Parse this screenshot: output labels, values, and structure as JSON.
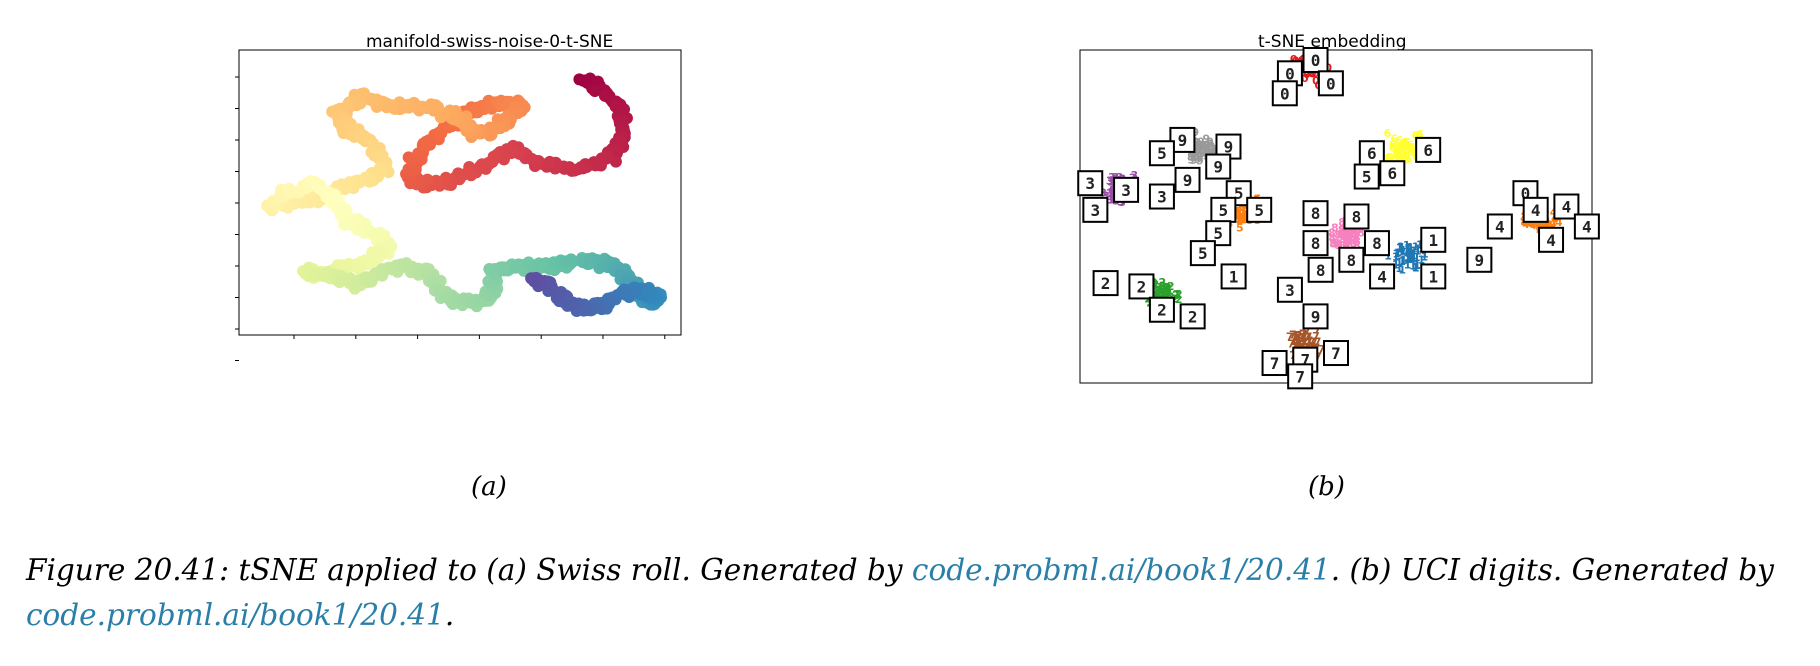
{
  "figure": {
    "panel_a": {
      "title": "manifold-swiss-noise-0-t-SNE",
      "sublabel": "(a)"
    },
    "panel_b": {
      "title": "t-SNE embedding",
      "sublabel": "(b)"
    },
    "caption": {
      "part1": "Figure 20.41: tSNE applied to (a) Swiss roll.  Generated by ",
      "link1": "code.probml.ai/book1/20.41",
      "part2": ".  (b) UCI digits. Generated by ",
      "link2": "code.probml.ai/book1/20.41",
      "part3": "."
    }
  },
  "chart_data": [
    {
      "type": "scatter",
      "title": "manifold-swiss-noise-0-t-SNE",
      "xlabel": "",
      "ylabel": "",
      "colormap": "Spectral",
      "grid": false,
      "legend": "none",
      "xlim": [
        0,
        100
      ],
      "ylim": [
        0,
        100
      ],
      "x_ticks_count": 7,
      "y_ticks_count": 10,
      "series": [
        {
          "color_by": "position along manifold",
          "path": [
            [
              78,
              90
            ],
            [
              82,
              86
            ],
            [
              86,
              80
            ],
            [
              87,
              70
            ],
            [
              84,
              62
            ],
            [
              76,
              58
            ],
            [
              68,
              60
            ],
            [
              62,
              66
            ],
            [
              56,
              60
            ],
            [
              48,
              54
            ],
            [
              42,
              53
            ],
            [
              38,
              56
            ],
            [
              41,
              64
            ],
            [
              46,
              72
            ],
            [
              52,
              78
            ],
            [
              58,
              82
            ],
            [
              64,
              80
            ],
            [
              60,
              74
            ],
            [
              54,
              70
            ],
            [
              50,
              76
            ],
            [
              44,
              80
            ],
            [
              34,
              80
            ],
            [
              28,
              84
            ],
            [
              22,
              78
            ],
            [
              25,
              72
            ],
            [
              31,
              66
            ],
            [
              33,
              58
            ],
            [
              27,
              54
            ],
            [
              21,
              50
            ],
            [
              14,
              47
            ],
            [
              7,
              44
            ],
            [
              10,
              50
            ],
            [
              17,
              53
            ],
            [
              22,
              47
            ],
            [
              24,
              40
            ],
            [
              30,
              36
            ],
            [
              34,
              31
            ],
            [
              30,
              26
            ],
            [
              24,
              24
            ],
            [
              19,
              21
            ],
            [
              15,
              22
            ],
            [
              22,
              20
            ],
            [
              28,
              18
            ],
            [
              32,
              22
            ],
            [
              38,
              24
            ],
            [
              43,
              22
            ],
            [
              45,
              16
            ],
            [
              49,
              12
            ],
            [
              55,
              12
            ],
            [
              58,
              16
            ],
            [
              57,
              22
            ],
            [
              62,
              24
            ],
            [
              68,
              24
            ],
            [
              74,
              25
            ],
            [
              80,
              26
            ],
            [
              85,
              24
            ],
            [
              88,
              20
            ],
            [
              90,
              14
            ],
            [
              93,
              11
            ],
            [
              95,
              13
            ],
            [
              91,
              16
            ],
            [
              86,
              14
            ],
            [
              82,
              10
            ],
            [
              78,
              9
            ],
            [
              74,
              12
            ],
            [
              70,
              18
            ],
            [
              66,
              20
            ]
          ]
        }
      ]
    },
    {
      "type": "scatter",
      "title": "t-SNE embedding",
      "xlabel": "",
      "ylabel": "",
      "grid": false,
      "legend": "none",
      "xlim": [
        0,
        100
      ],
      "ylim": [
        0,
        100
      ],
      "clusters": [
        {
          "digit": "0",
          "color": "#e41a1c",
          "center": [
            45,
            93
          ]
        },
        {
          "digit": "1",
          "color": "#1f77b4",
          "center": [
            64,
            37
          ]
        },
        {
          "digit": "2",
          "color": "#2ca02c",
          "center": [
            16,
            26
          ]
        },
        {
          "digit": "3",
          "color": "#984ea3",
          "center": [
            8,
            57
          ]
        },
        {
          "digit": "4",
          "color": "#ff7f0e",
          "center": [
            90,
            47
          ]
        },
        {
          "digit": "5",
          "color": "#ff7f0e",
          "center": [
            32,
            50
          ]
        },
        {
          "digit": "6",
          "color": "#ffff33",
          "center": [
            63,
            69
          ]
        },
        {
          "digit": "7",
          "color": "#a65628",
          "center": [
            44,
            11
          ]
        },
        {
          "digit": "8",
          "color": "#f781bf",
          "center": [
            52,
            43
          ]
        },
        {
          "digit": "9",
          "color": "#999999",
          "center": [
            24,
            69
          ]
        }
      ],
      "thumbnails": [
        {
          "digit": "0",
          "pos": [
            46,
            97
          ]
        },
        {
          "digit": "0",
          "pos": [
            41,
            93
          ]
        },
        {
          "digit": "0",
          "pos": [
            49,
            90
          ]
        },
        {
          "digit": "0",
          "pos": [
            40,
            87
          ]
        },
        {
          "digit": "6",
          "pos": [
            57,
            69
          ]
        },
        {
          "digit": "6",
          "pos": [
            68,
            70
          ]
        },
        {
          "digit": "6",
          "pos": [
            61,
            63
          ]
        },
        {
          "digit": "5",
          "pos": [
            56,
            62
          ]
        },
        {
          "digit": "9",
          "pos": [
            20,
            73
          ]
        },
        {
          "digit": "9",
          "pos": [
            29,
            71
          ]
        },
        {
          "digit": "5",
          "pos": [
            16,
            69
          ]
        },
        {
          "digit": "9",
          "pos": [
            27,
            65
          ]
        },
        {
          "digit": "3",
          "pos": [
            2,
            60
          ]
        },
        {
          "digit": "3",
          "pos": [
            9,
            58
          ]
        },
        {
          "digit": "3",
          "pos": [
            3,
            52
          ]
        },
        {
          "digit": "3",
          "pos": [
            16,
            56
          ]
        },
        {
          "digit": "9",
          "pos": [
            21,
            61
          ]
        },
        {
          "digit": "5",
          "pos": [
            31,
            57
          ]
        },
        {
          "digit": "5",
          "pos": [
            28,
            52
          ]
        },
        {
          "digit": "5",
          "pos": [
            35,
            52
          ]
        },
        {
          "digit": "5",
          "pos": [
            27,
            45
          ]
        },
        {
          "digit": "5",
          "pos": [
            24,
            39
          ]
        },
        {
          "digit": "1",
          "pos": [
            30,
            32
          ]
        },
        {
          "digit": "2",
          "pos": [
            5,
            30
          ]
        },
        {
          "digit": "2",
          "pos": [
            12,
            29
          ]
        },
        {
          "digit": "2",
          "pos": [
            16,
            22
          ]
        },
        {
          "digit": "2",
          "pos": [
            22,
            20
          ]
        },
        {
          "digit": "8",
          "pos": [
            46,
            51
          ]
        },
        {
          "digit": "8",
          "pos": [
            54,
            50
          ]
        },
        {
          "digit": "8",
          "pos": [
            46,
            42
          ]
        },
        {
          "digit": "8",
          "pos": [
            58,
            42
          ]
        },
        {
          "digit": "8",
          "pos": [
            47,
            34
          ]
        },
        {
          "digit": "8",
          "pos": [
            53,
            37
          ]
        },
        {
          "digit": "4",
          "pos": [
            59,
            32
          ]
        },
        {
          "digit": "1",
          "pos": [
            69,
            32
          ]
        },
        {
          "digit": "1",
          "pos": [
            69,
            43
          ]
        },
        {
          "digit": "9",
          "pos": [
            78,
            37
          ]
        },
        {
          "digit": "3",
          "pos": [
            41,
            28
          ]
        },
        {
          "digit": "9",
          "pos": [
            46,
            20
          ]
        },
        {
          "digit": "0",
          "pos": [
            87,
            57
          ]
        },
        {
          "digit": "4",
          "pos": [
            89,
            52
          ]
        },
        {
          "digit": "4",
          "pos": [
            95,
            53
          ]
        },
        {
          "digit": "4",
          "pos": [
            82,
            47
          ]
        },
        {
          "digit": "4",
          "pos": [
            92,
            43
          ]
        },
        {
          "digit": "4",
          "pos": [
            99,
            47
          ]
        },
        {
          "digit": "7",
          "pos": [
            50,
            9
          ]
        },
        {
          "digit": "7",
          "pos": [
            44,
            7
          ]
        },
        {
          "digit": "7",
          "pos": [
            38,
            6
          ]
        },
        {
          "digit": "7",
          "pos": [
            43,
            2
          ]
        }
      ]
    }
  ]
}
